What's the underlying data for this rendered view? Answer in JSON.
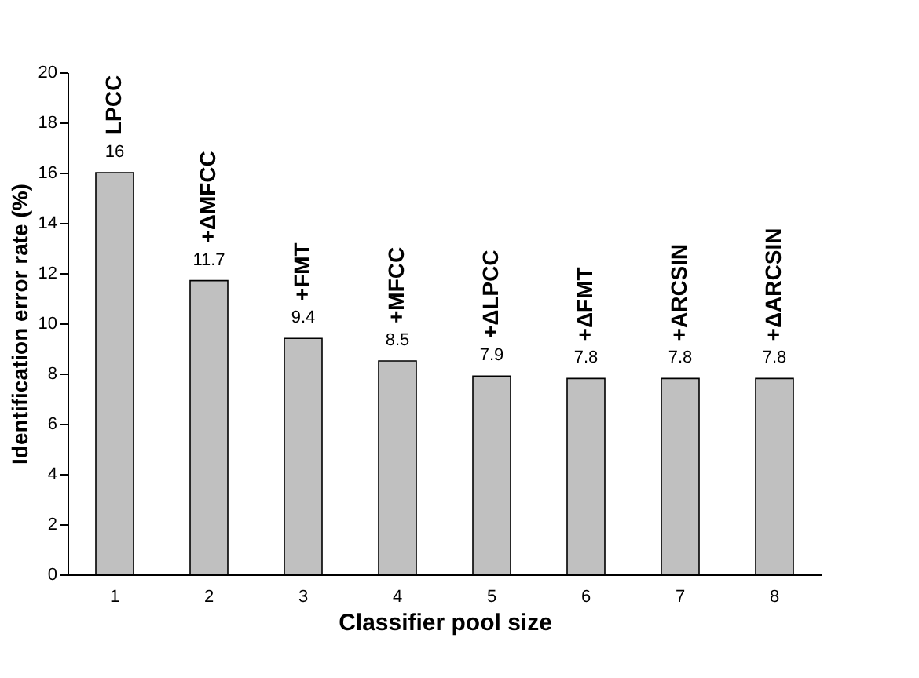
{
  "chart_data": {
    "type": "bar",
    "xlabel": "Classifier pool size",
    "ylabel": "Identification error rate (%)",
    "categories": [
      "1",
      "2",
      "3",
      "4",
      "5",
      "6",
      "7",
      "8"
    ],
    "values": [
      16,
      11.7,
      9.4,
      8.5,
      7.9,
      7.8,
      7.8,
      7.8
    ],
    "color": "#c0c0c0",
    "ylim": [
      0,
      20
    ],
    "yticks": [
      0,
      2,
      4,
      6,
      8,
      10,
      12,
      14,
      16,
      18,
      20
    ],
    "grid": false,
    "data_labels": true,
    "annotations": [
      {
        "text": "LPCC",
        "x": "1",
        "y": 16
      },
      {
        "text": "+ΔMFCC",
        "x": "2",
        "y": 11.7
      },
      {
        "text": "+FMT",
        "x": "3",
        "y": 9.4
      },
      {
        "text": "+MFCC",
        "x": "4",
        "y": 8.5
      },
      {
        "text": "+ΔLPCC",
        "x": "5",
        "y": 7.9
      },
      {
        "text": "+ΔFMT",
        "x": "6",
        "y": 7.8
      },
      {
        "text": "+ARCSIN",
        "x": "7",
        "y": 7.8
      },
      {
        "text": "+ΔARCSIN",
        "x": "8",
        "y": 7.8
      }
    ]
  }
}
